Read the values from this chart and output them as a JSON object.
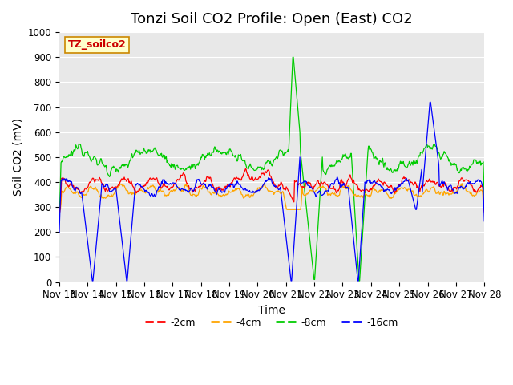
{
  "title": "Tonzi Soil CO2 Profile: Open (East) CO2",
  "ylabel": "Soil CO2 (mV)",
  "xlabel": "Time",
  "watermark_text": "TZ_soilco2",
  "ylim": [
    0,
    1000
  ],
  "yticks": [
    0,
    100,
    200,
    300,
    400,
    500,
    600,
    700,
    800,
    900,
    1000
  ],
  "xtick_labels": [
    "Nov 13",
    "Nov 14",
    "Nov 15",
    "Nov 16",
    "Nov 17",
    "Nov 18",
    "Nov 19",
    "Nov 20",
    "Nov 21",
    "Nov 22",
    "Nov 23",
    "Nov 24",
    "Nov 25",
    "Nov 26",
    "Nov 27",
    "Nov 28"
  ],
  "colors": {
    "2cm": "#ff0000",
    "4cm": "#ffa500",
    "8cm": "#00cc00",
    "16cm": "#0000ff"
  },
  "bg_color": "#e8e8e8",
  "legend_labels": [
    "-2cm",
    "-4cm",
    "-8cm",
    "-16cm"
  ],
  "legend_colors": [
    "#ff0000",
    "#ffa500",
    "#00cc00",
    "#0000ff"
  ],
  "title_fontsize": 13,
  "axis_fontsize": 10,
  "tick_fontsize": 8.5
}
